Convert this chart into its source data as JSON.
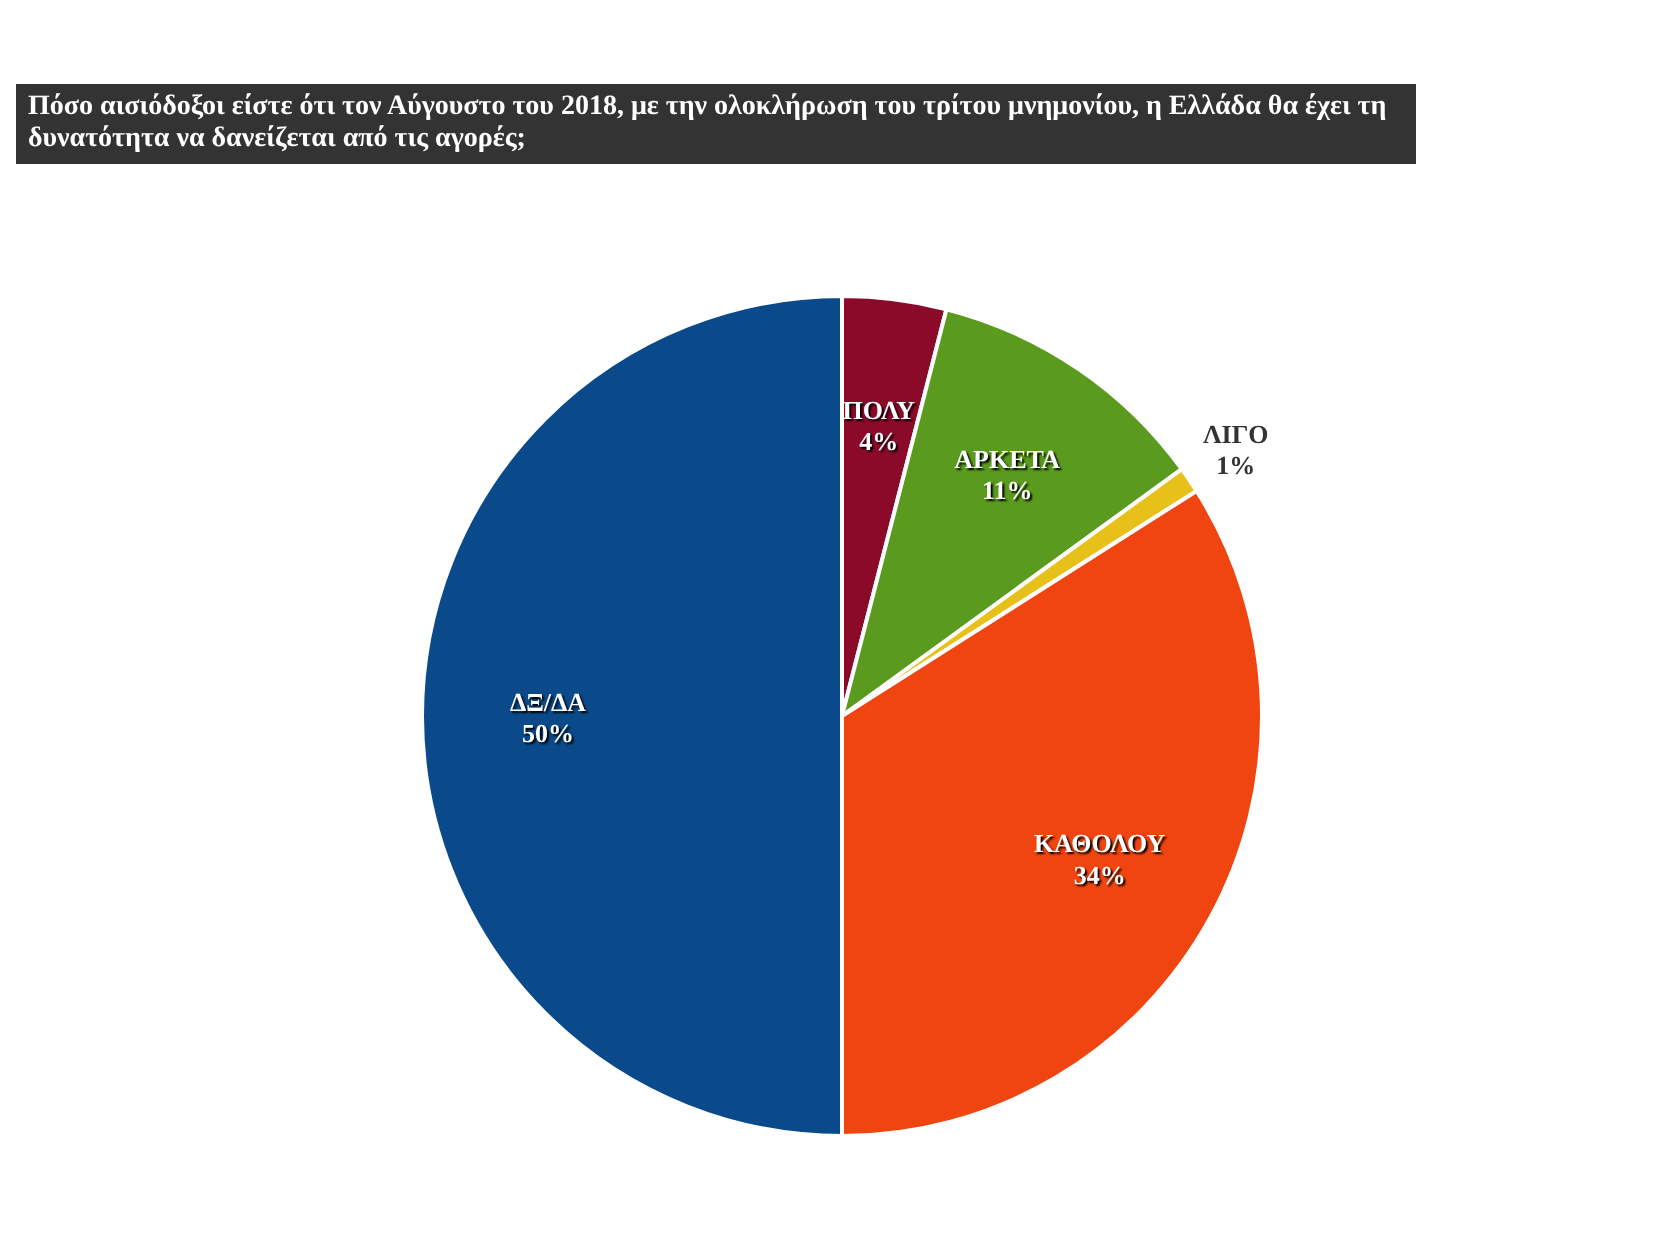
{
  "chart_data": {
    "type": "pie",
    "title": "Πόσο αισιόδοξοι είστε ότι τον Αύγουστο του 2018, με την ολοκλήρωση του τρίτου μνημονίου, η Ελλάδα θα έχει τη δυνατότητα να δανείζεται από τις αγορές;",
    "categories": [
      "ΠΟΛΥ",
      "ΑΡΚΕΤΑ",
      "ΛΙΓΟ",
      "ΚΑΘΟΛΟΥ",
      "ΔΞ/ΔΑ"
    ],
    "values": [
      4,
      11,
      1,
      34,
      50
    ],
    "value_labels": [
      "4%",
      "11%",
      "1%",
      "34%",
      "50%"
    ],
    "colors": [
      "#8b0a2a",
      "#5a9a1e",
      "#e8c01a",
      "#f04510",
      "#0a4a8a"
    ],
    "legend": false
  }
}
